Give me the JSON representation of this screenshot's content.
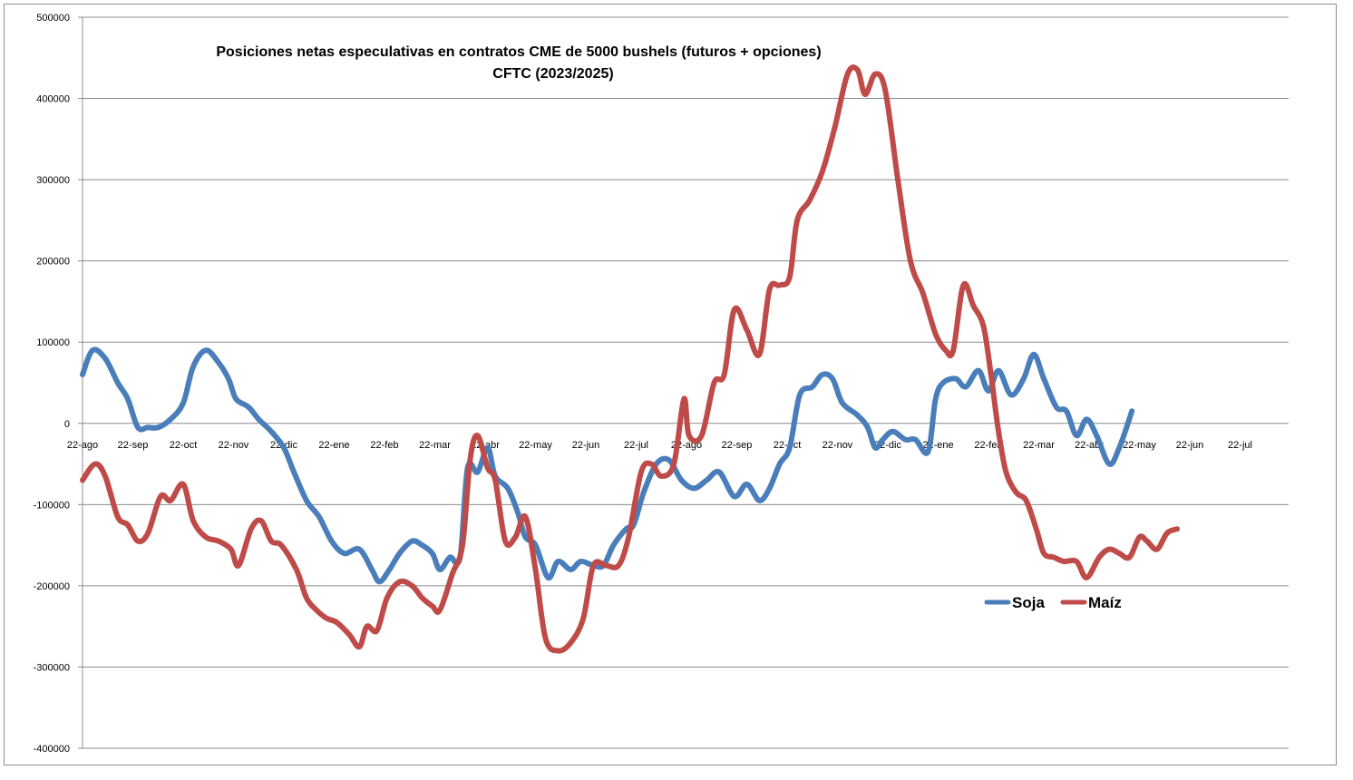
{
  "chart_data": {
    "type": "line",
    "title": "Posiciones netas especulativas en contratos CME de 5000 bushels (futuros + opciones)",
    "subtitle": "CFTC (2023/2025)",
    "xlabel": "",
    "ylabel": "",
    "ylim": [
      -400000,
      500000
    ],
    "y_ticks": [
      -400000,
      -300000,
      -200000,
      -100000,
      0,
      100000,
      200000,
      300000,
      400000,
      500000
    ],
    "y_tick_labels": [
      "-400000",
      "-300000",
      "-200000",
      "-100000",
      "0",
      "100000",
      "200000",
      "300000",
      "400000",
      "500000"
    ],
    "x_tick_labels": [
      "22-ago",
      "22-sep",
      "22-oct",
      "22-nov",
      "22-dic",
      "22-ene",
      "22-feb",
      "22-mar",
      "22-abr",
      "22-may",
      "22-jun",
      "22-jul",
      "22-ago",
      "22-sep",
      "22-oct",
      "22-nov",
      "22-dic",
      "22-ene",
      "22-feb",
      "22-mar",
      "22-abr",
      "22-may",
      "22-jun",
      "22-jul"
    ],
    "grid": true,
    "legend_position": "bottom-right",
    "series": [
      {
        "name": "Soja",
        "color": "#4a7ebb",
        "points": [
          [
            0,
            60000
          ],
          [
            0.2,
            90000
          ],
          [
            0.45,
            80000
          ],
          [
            0.7,
            50000
          ],
          [
            0.9,
            30000
          ],
          [
            1.1,
            -5000
          ],
          [
            1.3,
            -5000
          ],
          [
            1.5,
            -5000
          ],
          [
            1.75,
            5000
          ],
          [
            2.0,
            25000
          ],
          [
            2.2,
            70000
          ],
          [
            2.45,
            90000
          ],
          [
            2.7,
            75000
          ],
          [
            2.9,
            55000
          ],
          [
            3.05,
            30000
          ],
          [
            3.3,
            20000
          ],
          [
            3.5,
            5000
          ],
          [
            3.75,
            -10000
          ],
          [
            4.0,
            -30000
          ],
          [
            4.2,
            -60000
          ],
          [
            4.45,
            -95000
          ],
          [
            4.7,
            -115000
          ],
          [
            4.95,
            -145000
          ],
          [
            5.2,
            -160000
          ],
          [
            5.5,
            -155000
          ],
          [
            5.75,
            -180000
          ],
          [
            5.9,
            -195000
          ],
          [
            6.1,
            -180000
          ],
          [
            6.3,
            -160000
          ],
          [
            6.55,
            -145000
          ],
          [
            6.75,
            -150000
          ],
          [
            6.95,
            -160000
          ],
          [
            7.1,
            -180000
          ],
          [
            7.3,
            -165000
          ],
          [
            7.5,
            -165000
          ],
          [
            7.65,
            -55000
          ],
          [
            7.85,
            -60000
          ],
          [
            8.05,
            -30000
          ],
          [
            8.2,
            -65000
          ],
          [
            8.45,
            -80000
          ],
          [
            8.65,
            -110000
          ],
          [
            8.8,
            -140000
          ],
          [
            9.0,
            -150000
          ],
          [
            9.25,
            -190000
          ],
          [
            9.45,
            -170000
          ],
          [
            9.7,
            -180000
          ],
          [
            9.9,
            -170000
          ],
          [
            10.15,
            -175000
          ],
          [
            10.35,
            -175000
          ],
          [
            10.55,
            -150000
          ],
          [
            10.8,
            -130000
          ],
          [
            10.95,
            -125000
          ],
          [
            11.15,
            -85000
          ],
          [
            11.4,
            -50000
          ],
          [
            11.65,
            -45000
          ],
          [
            11.9,
            -70000
          ],
          [
            12.15,
            -80000
          ],
          [
            12.4,
            -70000
          ],
          [
            12.65,
            -60000
          ],
          [
            12.95,
            -90000
          ],
          [
            13.2,
            -75000
          ],
          [
            13.45,
            -95000
          ],
          [
            13.65,
            -80000
          ],
          [
            13.85,
            -50000
          ],
          [
            14.05,
            -30000
          ],
          [
            14.25,
            35000
          ],
          [
            14.5,
            45000
          ],
          [
            14.7,
            60000
          ],
          [
            14.9,
            55000
          ],
          [
            15.1,
            25000
          ],
          [
            15.4,
            10000
          ],
          [
            15.6,
            -5000
          ],
          [
            15.75,
            -30000
          ],
          [
            15.9,
            -20000
          ],
          [
            16.1,
            -10000
          ],
          [
            16.35,
            -20000
          ],
          [
            16.55,
            -20000
          ],
          [
            16.8,
            -35000
          ],
          [
            16.95,
            30000
          ],
          [
            17.1,
            50000
          ],
          [
            17.35,
            55000
          ],
          [
            17.55,
            45000
          ],
          [
            17.8,
            65000
          ],
          [
            18.0,
            40000
          ],
          [
            18.2,
            65000
          ],
          [
            18.45,
            35000
          ],
          [
            18.7,
            55000
          ],
          [
            18.9,
            85000
          ],
          [
            19.1,
            55000
          ],
          [
            19.35,
            20000
          ],
          [
            19.55,
            15000
          ],
          [
            19.75,
            -15000
          ],
          [
            19.95,
            5000
          ],
          [
            20.15,
            -15000
          ],
          [
            20.4,
            -50000
          ],
          [
            20.6,
            -30000
          ],
          [
            20.85,
            15000
          ]
        ]
      },
      {
        "name": "Maíz",
        "color": "#be4b48",
        "points": [
          [
            0,
            -70000
          ],
          [
            0.25,
            -50000
          ],
          [
            0.45,
            -65000
          ],
          [
            0.7,
            -115000
          ],
          [
            0.9,
            -125000
          ],
          [
            1.1,
            -145000
          ],
          [
            1.3,
            -135000
          ],
          [
            1.55,
            -90000
          ],
          [
            1.75,
            -95000
          ],
          [
            2.0,
            -75000
          ],
          [
            2.2,
            -120000
          ],
          [
            2.45,
            -140000
          ],
          [
            2.7,
            -145000
          ],
          [
            2.95,
            -155000
          ],
          [
            3.1,
            -175000
          ],
          [
            3.35,
            -130000
          ],
          [
            3.55,
            -120000
          ],
          [
            3.75,
            -145000
          ],
          [
            3.95,
            -150000
          ],
          [
            4.25,
            -180000
          ],
          [
            4.45,
            -215000
          ],
          [
            4.65,
            -230000
          ],
          [
            4.85,
            -240000
          ],
          [
            5.05,
            -245000
          ],
          [
            5.3,
            -260000
          ],
          [
            5.5,
            -275000
          ],
          [
            5.65,
            -250000
          ],
          [
            5.85,
            -255000
          ],
          [
            6.05,
            -215000
          ],
          [
            6.3,
            -195000
          ],
          [
            6.55,
            -200000
          ],
          [
            6.75,
            -215000
          ],
          [
            6.95,
            -225000
          ],
          [
            7.1,
            -230000
          ],
          [
            7.35,
            -185000
          ],
          [
            7.55,
            -150000
          ],
          [
            7.7,
            -45000
          ],
          [
            7.85,
            -15000
          ],
          [
            8.05,
            -55000
          ],
          [
            8.2,
            -70000
          ],
          [
            8.4,
            -145000
          ],
          [
            8.6,
            -140000
          ],
          [
            8.8,
            -115000
          ],
          [
            9.0,
            -180000
          ],
          [
            9.2,
            -265000
          ],
          [
            9.45,
            -280000
          ],
          [
            9.7,
            -270000
          ],
          [
            9.95,
            -240000
          ],
          [
            10.15,
            -175000
          ],
          [
            10.4,
            -175000
          ],
          [
            10.65,
            -175000
          ],
          [
            10.85,
            -140000
          ],
          [
            11.1,
            -60000
          ],
          [
            11.3,
            -50000
          ],
          [
            11.5,
            -65000
          ],
          [
            11.75,
            -50000
          ],
          [
            11.95,
            30000
          ],
          [
            12.05,
            -15000
          ],
          [
            12.3,
            -15000
          ],
          [
            12.55,
            50000
          ],
          [
            12.75,
            60000
          ],
          [
            12.95,
            140000
          ],
          [
            13.2,
            115000
          ],
          [
            13.45,
            85000
          ],
          [
            13.65,
            165000
          ],
          [
            13.85,
            170000
          ],
          [
            14.05,
            180000
          ],
          [
            14.2,
            250000
          ],
          [
            14.45,
            275000
          ],
          [
            14.7,
            310000
          ],
          [
            14.95,
            365000
          ],
          [
            15.2,
            430000
          ],
          [
            15.4,
            435000
          ],
          [
            15.55,
            405000
          ],
          [
            15.75,
            430000
          ],
          [
            15.95,
            410000
          ],
          [
            16.2,
            300000
          ],
          [
            16.45,
            200000
          ],
          [
            16.7,
            160000
          ],
          [
            16.95,
            110000
          ],
          [
            17.15,
            90000
          ],
          [
            17.3,
            90000
          ],
          [
            17.5,
            170000
          ],
          [
            17.7,
            145000
          ],
          [
            17.9,
            120000
          ],
          [
            18.05,
            60000
          ],
          [
            18.2,
            -10000
          ],
          [
            18.35,
            -60000
          ],
          [
            18.55,
            -85000
          ],
          [
            18.75,
            -95000
          ],
          [
            18.95,
            -130000
          ],
          [
            19.1,
            -160000
          ],
          [
            19.3,
            -165000
          ],
          [
            19.5,
            -170000
          ],
          [
            19.75,
            -170000
          ],
          [
            19.95,
            -190000
          ],
          [
            20.2,
            -165000
          ],
          [
            20.4,
            -155000
          ],
          [
            20.6,
            -160000
          ],
          [
            20.8,
            -165000
          ],
          [
            21.0,
            -140000
          ],
          [
            21.15,
            -145000
          ],
          [
            21.35,
            -155000
          ],
          [
            21.55,
            -135000
          ],
          [
            21.75,
            -130000
          ]
        ]
      }
    ]
  }
}
